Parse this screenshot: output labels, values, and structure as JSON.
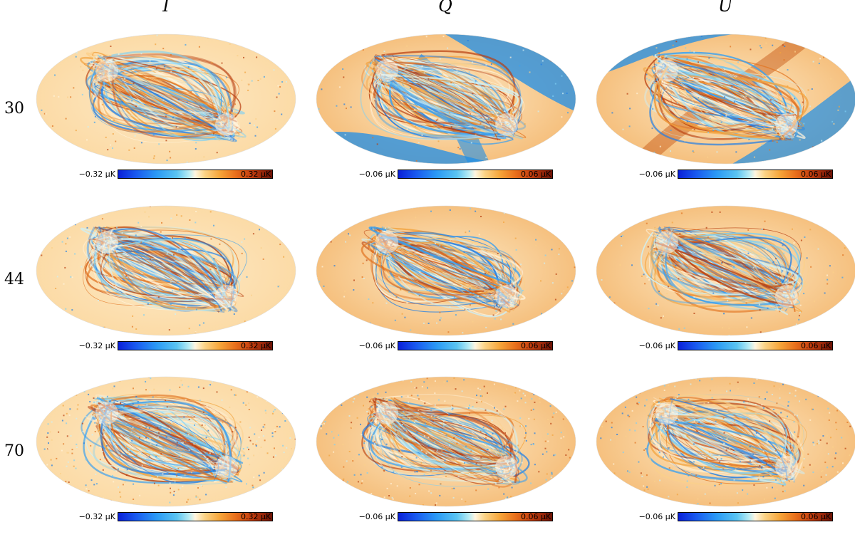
{
  "columns": [
    "I",
    "Q",
    "U"
  ],
  "rows": [
    {
      "label": "30",
      "panels": [
        {
          "cb_min": "−0.32 μK",
          "cb_max": "0.32 μK"
        },
        {
          "cb_min": "−0.06 μK",
          "cb_max": "0.06 μK"
        },
        {
          "cb_min": "−0.06 μK",
          "cb_max": "0.06 μK"
        }
      ]
    },
    {
      "label": "44",
      "panels": [
        {
          "cb_min": "−0.32 μK",
          "cb_max": "0.32 μK"
        },
        {
          "cb_min": "−0.06 μK",
          "cb_max": "0.06 μK"
        },
        {
          "cb_min": "−0.06 μK",
          "cb_max": "0.06 μK"
        }
      ]
    },
    {
      "label": "70",
      "panels": [
        {
          "cb_min": "−0.32 μK",
          "cb_max": "0.32 μK"
        },
        {
          "cb_min": "−0.06 μK",
          "cb_max": "0.06 μK"
        },
        {
          "cb_min": "−0.06 μK",
          "cb_max": "0.06 μK"
        }
      ]
    }
  ],
  "colormap": {
    "low": "#0a20d8",
    "mid_low": "#5ac4f2",
    "center": "#fff6e0",
    "mid_high": "#f6a53a",
    "high": "#6e1206"
  }
}
